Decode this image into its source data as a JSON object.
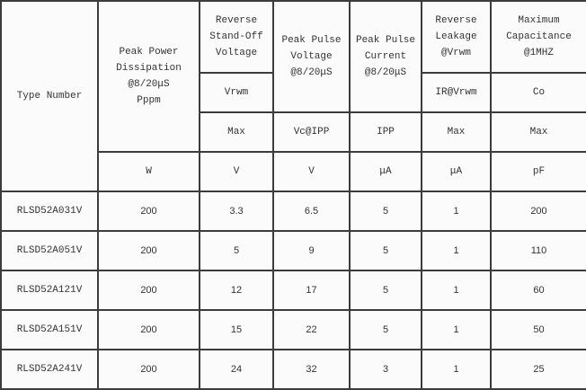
{
  "header": {
    "type_number": "Type Number",
    "peak_power": "Peak Power\nDissipation\n@8/20μS\nPppm",
    "reverse_standoff": "Reverse\nStand-Off\nVoltage",
    "peak_pulse_voltage": "Peak Pulse\nVoltage\n@8/20μS",
    "peak_pulse_current": "Peak Pulse\nCurrent\n@8/20μS",
    "reverse_leakage": "Reverse\nLeakage\n@Vrwm",
    "max_capacitance": "Maximum\nCapacitance\n@1MHZ",
    "vrwm": "Vrwm",
    "ir_vrwm": "IR@Vrwm",
    "co": "Co",
    "max1": "Max",
    "vc_ipp": "Vc@IPP",
    "ipp": "IPP",
    "max2": "Max",
    "max3": "Max",
    "units": [
      "W",
      "V",
      "V",
      "μA",
      "μA",
      "pF"
    ]
  },
  "rows": [
    [
      "RLSD52A031V",
      "200",
      "3.3",
      "6.5",
      "5",
      "1",
      "200"
    ],
    [
      "RLSD52A051V",
      "200",
      "5",
      "9",
      "5",
      "1",
      "110"
    ],
    [
      "RLSD52A121V",
      "200",
      "12",
      "17",
      "5",
      "1",
      "60"
    ],
    [
      "RLSD52A151V",
      "200",
      "15",
      "22",
      "5",
      "1",
      "50"
    ],
    [
      "RLSD52A241V",
      "200",
      "24",
      "32",
      "3",
      "1",
      "25"
    ]
  ]
}
